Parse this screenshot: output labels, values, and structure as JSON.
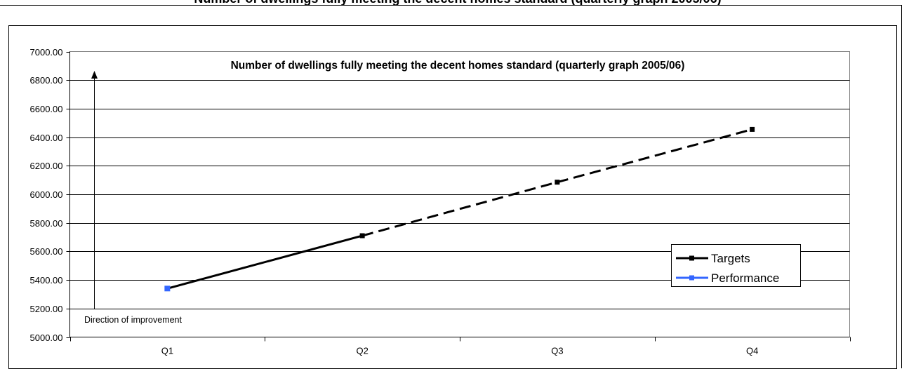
{
  "page": {
    "clipped_heading": "Number of dwellings fully meeting the decent homes standard (quarterly graph 2005/06)"
  },
  "chart_data": {
    "type": "line",
    "title": "Number of dwellings fully meeting the decent homes standard (quarterly graph 2005/06)",
    "xlabel": "",
    "ylabel": "",
    "categories": [
      "Q1",
      "Q2",
      "Q3",
      "Q4"
    ],
    "ylim": [
      5000,
      7000
    ],
    "ytick_step": 200,
    "y_tick_labels": [
      "5000.00",
      "5200.00",
      "5400.00",
      "5600.00",
      "5800.00",
      "6000.00",
      "6200.00",
      "6400.00",
      "6600.00",
      "6800.00",
      "7000.00"
    ],
    "grid": true,
    "legend_position": "bottom-right",
    "series": [
      {
        "name": "Targets",
        "values": [
          5340,
          5710,
          6085,
          6455
        ],
        "color": "#000000",
        "line_style": "solid Q1–Q2, dashed Q2–Q4",
        "marker": "square"
      },
      {
        "name": "Performance",
        "values": [
          5340,
          null,
          null,
          null
        ],
        "color": "#3366ff",
        "marker": "square"
      }
    ],
    "annotations": [
      {
        "text": "Direction of improvement",
        "arrow": "up"
      }
    ]
  }
}
